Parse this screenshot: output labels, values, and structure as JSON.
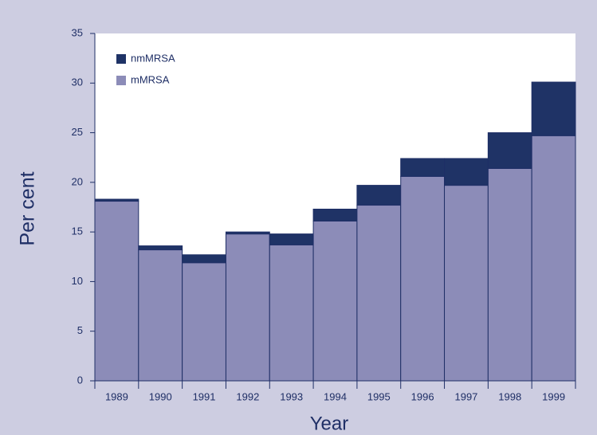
{
  "chart_data": {
    "type": "stacked-bar",
    "xlabel": "Year",
    "ylabel": "Per cent",
    "categories": [
      "1989",
      "1990",
      "1991",
      "1992",
      "1993",
      "1994",
      "1995",
      "1996",
      "1997",
      "1998",
      "1999"
    ],
    "series": [
      {
        "name": "mMRSA",
        "color": "#8c8cb8",
        "values": [
          18.1,
          13.2,
          11.9,
          14.8,
          13.7,
          16.1,
          17.7,
          20.6,
          19.7,
          21.4,
          24.7
        ]
      },
      {
        "name": "nmMRSA",
        "color": "#1f3366",
        "values": [
          0.2,
          0.4,
          0.8,
          0.2,
          1.1,
          1.2,
          2.0,
          1.8,
          2.7,
          3.6,
          5.4
        ]
      }
    ],
    "ylim": [
      0,
      35
    ],
    "yticks": [
      0,
      5,
      10,
      15,
      20,
      25,
      30,
      35
    ],
    "legend": "top-left"
  }
}
